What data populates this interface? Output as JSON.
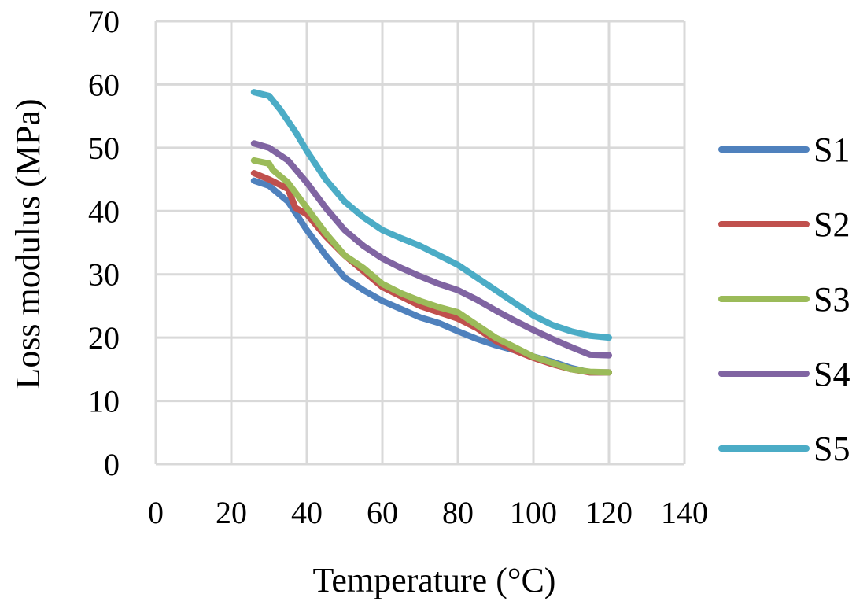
{
  "chart_data": {
    "type": "line",
    "title": "",
    "xlabel": "Temperature (°C)",
    "ylabel": "Loss modulus (MPa)",
    "xlim": [
      0,
      140
    ],
    "ylim": [
      0,
      70
    ],
    "xticks": [
      0,
      20,
      40,
      60,
      80,
      100,
      120,
      140
    ],
    "yticks": [
      0,
      10,
      20,
      30,
      40,
      50,
      60,
      70
    ],
    "grid": true,
    "legend": "right",
    "series": [
      {
        "name": "S1",
        "color": "#4F81BD",
        "x": [
          26,
          30,
          35,
          40,
          45,
          50,
          55,
          60,
          65,
          70,
          75,
          80,
          85,
          90,
          95,
          100,
          105,
          110,
          115,
          120
        ],
        "y": [
          44.8,
          44,
          41.5,
          37,
          33,
          29.5,
          27.5,
          25.8,
          24.5,
          23.2,
          22.3,
          21,
          19.8,
          18.8,
          18,
          17,
          16.2,
          15.2,
          14.5,
          14.5
        ]
      },
      {
        "name": "S2",
        "color": "#C0504D",
        "x": [
          26,
          30,
          35,
          37,
          40,
          45,
          50,
          55,
          60,
          65,
          70,
          75,
          80,
          85,
          90,
          95,
          100,
          105,
          110,
          115,
          120
        ],
        "y": [
          46,
          45,
          43.5,
          40.5,
          39.5,
          36,
          33,
          30.5,
          28,
          26.5,
          25,
          24,
          23,
          21.5,
          19.5,
          18,
          16.8,
          15.8,
          15,
          14.5,
          14.5
        ]
      },
      {
        "name": "S3",
        "color": "#9BBB59",
        "x": [
          26,
          30,
          31,
          35,
          40,
          45,
          50,
          55,
          60,
          65,
          70,
          75,
          80,
          85,
          90,
          95,
          100,
          105,
          110,
          115,
          120
        ],
        "y": [
          48,
          47.5,
          46.5,
          44.5,
          40.5,
          36.5,
          33,
          31,
          28.5,
          27,
          25.8,
          24.8,
          24,
          22,
          20,
          18.5,
          17,
          16,
          15,
          14.6,
          14.5
        ]
      },
      {
        "name": "S4",
        "color": "#8064A2",
        "x": [
          26,
          30,
          35,
          40,
          45,
          50,
          55,
          60,
          65,
          70,
          75,
          80,
          85,
          90,
          95,
          100,
          105,
          110,
          115,
          120
        ],
        "y": [
          50.7,
          50,
          48,
          44.5,
          40.5,
          37,
          34.5,
          32.5,
          31,
          29.7,
          28.5,
          27.5,
          26,
          24.3,
          22.7,
          21.2,
          19.8,
          18.5,
          17.3,
          17.2
        ]
      },
      {
        "name": "S5",
        "color": "#4BACC6",
        "x": [
          26,
          30,
          33,
          37,
          40,
          45,
          50,
          55,
          60,
          65,
          70,
          75,
          80,
          85,
          90,
          95,
          100,
          105,
          110,
          115,
          120
        ],
        "y": [
          58.8,
          58.2,
          56,
          52.5,
          49.5,
          45,
          41.5,
          39,
          37,
          35.7,
          34.5,
          33,
          31.5,
          29.5,
          27.5,
          25.5,
          23.5,
          22,
          21,
          20.3,
          20
        ]
      }
    ]
  }
}
